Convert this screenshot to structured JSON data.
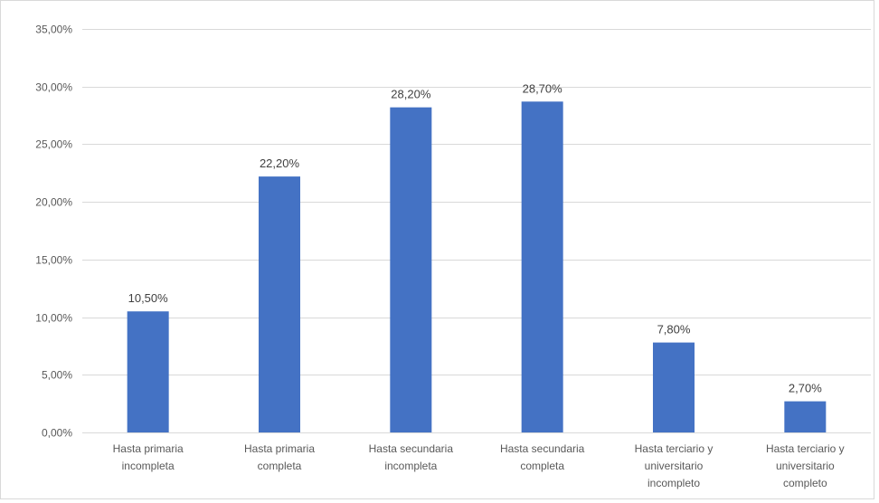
{
  "chart_data": {
    "type": "bar",
    "categories": [
      [
        "Hasta primaria",
        "incompleta"
      ],
      [
        "Hasta primaria",
        "completa"
      ],
      [
        "Hasta secundaria",
        "incompleta"
      ],
      [
        "Hasta secundaria",
        "completa"
      ],
      [
        "Hasta terciario y",
        "universitario",
        "incompleto"
      ],
      [
        "Hasta terciario y",
        "universitario",
        "completo"
      ]
    ],
    "values": [
      10.5,
      22.2,
      28.2,
      28.7,
      7.8,
      2.7
    ],
    "data_labels": [
      "10,50%",
      "22,20%",
      "28,20%",
      "28,70%",
      "7,80%",
      "2,70%"
    ],
    "ylim": [
      0,
      35
    ],
    "yticks": [
      0,
      5,
      10,
      15,
      20,
      25,
      30,
      35
    ],
    "ytick_labels": [
      "0,00%",
      "5,00%",
      "10,00%",
      "15,00%",
      "20,00%",
      "25,00%",
      "30,00%",
      "35,00%"
    ],
    "grid": true,
    "legend": false,
    "bar_color": "#4472C4",
    "grid_color": "#d9d9d9"
  }
}
